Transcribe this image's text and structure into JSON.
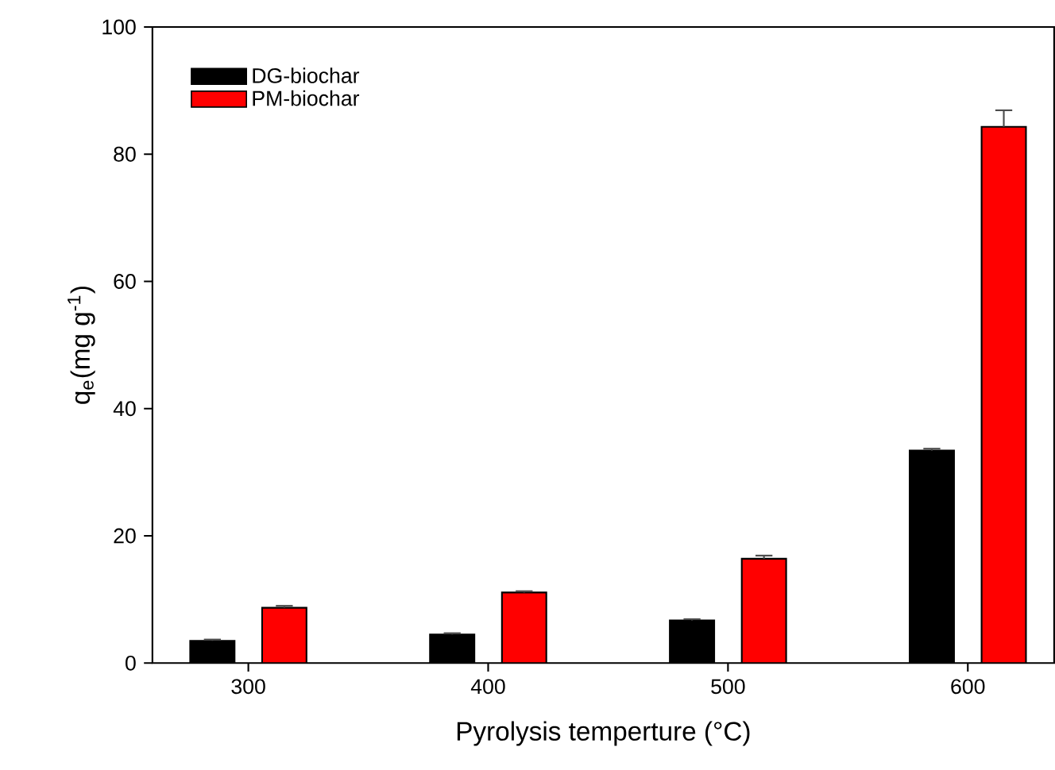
{
  "chart_data": {
    "type": "bar",
    "xlabel": "Pyrolysis temperture (°C)",
    "ylabel": "q$_{e}$(mg g$^{-1}$)",
    "categories": [
      "300",
      "400",
      "500",
      "600"
    ],
    "series": [
      {
        "name": "DG-biochar",
        "color": "#000000",
        "values": [
          3.5,
          4.5,
          6.7,
          33.4
        ],
        "errors": [
          0.2,
          0.2,
          0.2,
          0.3
        ]
      },
      {
        "name": "PM-biochar",
        "color": "#ff0000",
        "values": [
          8.7,
          11.1,
          16.4,
          84.3
        ],
        "errors": [
          0.3,
          0.2,
          0.5,
          2.6
        ]
      }
    ],
    "ylim": [
      0,
      100
    ],
    "yticks": [
      0,
      20,
      40,
      60,
      80,
      100
    ],
    "grid": false,
    "legend": "top left"
  }
}
